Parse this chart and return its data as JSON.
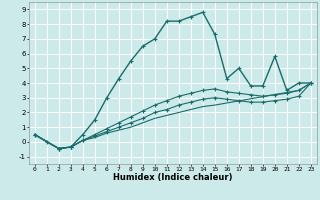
{
  "xlabel": "Humidex (Indice chaleur)",
  "bg_color": "#cceaea",
  "grid_color": "#ffffff",
  "line_color": "#1a6b6b",
  "xlim": [
    -0.5,
    23.5
  ],
  "ylim": [
    -1.5,
    9.5
  ],
  "xticks": [
    0,
    1,
    2,
    3,
    4,
    5,
    6,
    7,
    8,
    9,
    10,
    11,
    12,
    13,
    14,
    15,
    16,
    17,
    18,
    19,
    20,
    21,
    22,
    23
  ],
  "yticks": [
    -1,
    0,
    1,
    2,
    3,
    4,
    5,
    6,
    7,
    8,
    9
  ],
  "line1_x": [
    0,
    1,
    2,
    3,
    4,
    5,
    6,
    7,
    8,
    9,
    10,
    11,
    12,
    13,
    14,
    15,
    16,
    17,
    18,
    19,
    20,
    21,
    22,
    23
  ],
  "line1_y": [
    0.5,
    0.0,
    -0.45,
    -0.35,
    0.5,
    1.5,
    3.0,
    4.3,
    5.5,
    6.5,
    7.0,
    8.2,
    8.2,
    8.5,
    8.8,
    7.3,
    4.3,
    5.0,
    3.8,
    3.8,
    5.8,
    3.5,
    4.0,
    4.0
  ],
  "line2_x": [
    0,
    2,
    3,
    4,
    5,
    6,
    7,
    8,
    9,
    10,
    11,
    12,
    13,
    14,
    15,
    16,
    17,
    18,
    19,
    20,
    21,
    22,
    23
  ],
  "line2_y": [
    0.5,
    -0.45,
    -0.35,
    0.1,
    0.5,
    0.9,
    1.3,
    1.7,
    2.1,
    2.5,
    2.8,
    3.1,
    3.3,
    3.5,
    3.6,
    3.4,
    3.3,
    3.2,
    3.1,
    3.2,
    3.3,
    3.5,
    4.0
  ],
  "line3_x": [
    0,
    2,
    3,
    4,
    5,
    6,
    7,
    8,
    9,
    10,
    11,
    12,
    13,
    14,
    15,
    16,
    17,
    18,
    19,
    20,
    21,
    22,
    23
  ],
  "line3_y": [
    0.5,
    -0.45,
    -0.35,
    0.1,
    0.4,
    0.7,
    1.0,
    1.3,
    1.6,
    2.0,
    2.2,
    2.5,
    2.7,
    2.9,
    3.0,
    2.9,
    2.8,
    2.7,
    2.7,
    2.8,
    2.9,
    3.1,
    4.0
  ],
  "line4_x": [
    0,
    2,
    3,
    4,
    5,
    6,
    7,
    8,
    9,
    10,
    11,
    12,
    13,
    14,
    15,
    22,
    23
  ],
  "line4_y": [
    0.5,
    -0.45,
    -0.35,
    0.1,
    0.3,
    0.6,
    0.8,
    1.0,
    1.3,
    1.6,
    1.8,
    2.0,
    2.2,
    2.4,
    2.5,
    3.5,
    4.0
  ]
}
